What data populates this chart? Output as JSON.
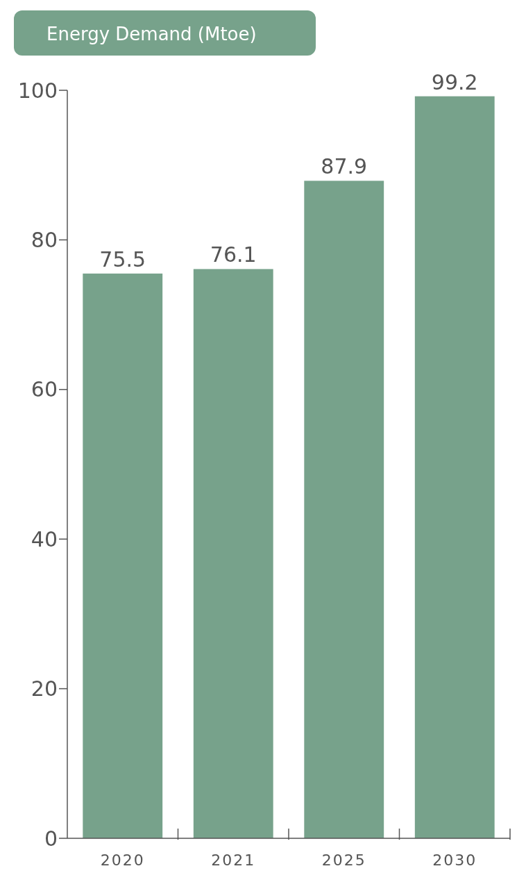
{
  "chart_data": {
    "type": "bar",
    "title": "Energy Demand (Mtoe)",
    "categories": [
      "2020",
      "2021",
      "2025",
      "2030"
    ],
    "values": [
      75.5,
      76.1,
      87.9,
      99.2
    ],
    "color": "#77a28b",
    "ylim": [
      0,
      100
    ],
    "yticks": [
      0,
      20,
      40,
      60,
      80,
      100
    ],
    "data_labels": true,
    "grid": false
  }
}
